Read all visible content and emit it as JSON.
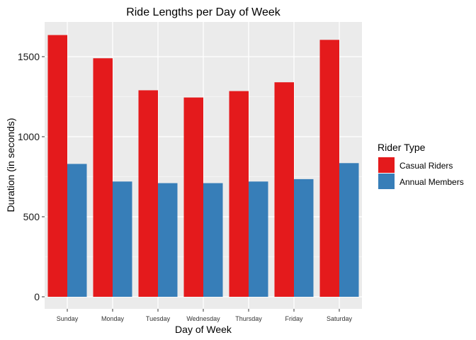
{
  "chart_data": {
    "type": "bar",
    "title": "Ride Lengths per Day of Week",
    "xlabel": "Day of Week",
    "ylabel": "Duration (in seconds)",
    "categories": [
      "Sunday",
      "Monday",
      "Tuesday",
      "Wednesday",
      "Thursday",
      "Friday",
      "Saturday"
    ],
    "series": [
      {
        "name": "Casual Riders",
        "color": "#e41a1c",
        "values": [
          1635,
          1490,
          1290,
          1245,
          1285,
          1340,
          1605
        ]
      },
      {
        "name": "Annual Members",
        "color": "#377eb8",
        "values": [
          830,
          720,
          710,
          710,
          720,
          735,
          835
        ]
      }
    ],
    "ylim": [
      0,
      1700
    ],
    "yticks": [
      0,
      500,
      1000,
      1500
    ],
    "grid": true,
    "panel_background": "#ebebeb",
    "legend": {
      "title": "Rider Type",
      "placement": "right"
    }
  }
}
